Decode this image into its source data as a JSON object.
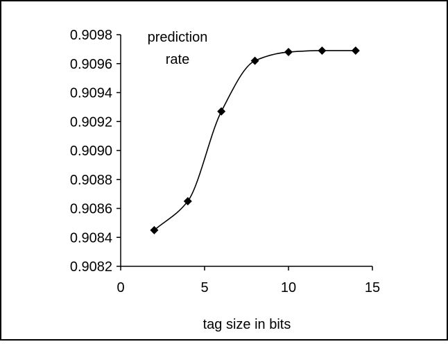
{
  "chart_data": {
    "type": "line",
    "title": "",
    "annotation_lines": [
      "prediction",
      "rate"
    ],
    "xlabel": "tag size in bits",
    "ylabel": "",
    "xlim": [
      0,
      15
    ],
    "ylim": [
      0.9082,
      0.9098
    ],
    "x_ticks": [
      0,
      5,
      10,
      15
    ],
    "x_tick_labels": [
      "0",
      "5",
      "10",
      "15"
    ],
    "y_ticks": [
      0.9082,
      0.9084,
      0.9086,
      0.9088,
      0.909,
      0.9092,
      0.9094,
      0.9096,
      0.9098
    ],
    "y_tick_labels": [
      "0.9082",
      "0.9084",
      "0.9086",
      "0.9088",
      "0.9090",
      "0.9092",
      "0.9094",
      "0.9096",
      "0.9098"
    ],
    "grid": false,
    "legend": "none",
    "line_style": "smoothed",
    "marker": "diamond",
    "series": [
      {
        "x": [
          2,
          4,
          6,
          8,
          10,
          12,
          14
        ],
        "y": [
          0.90845,
          0.90865,
          0.90927,
          0.90962,
          0.90968,
          0.90969,
          0.90969
        ]
      }
    ],
    "colors": {
      "line": "#000000",
      "marker": "#000000",
      "axis": "#000000",
      "frame": "#000000",
      "background": "#ffffff"
    }
  }
}
